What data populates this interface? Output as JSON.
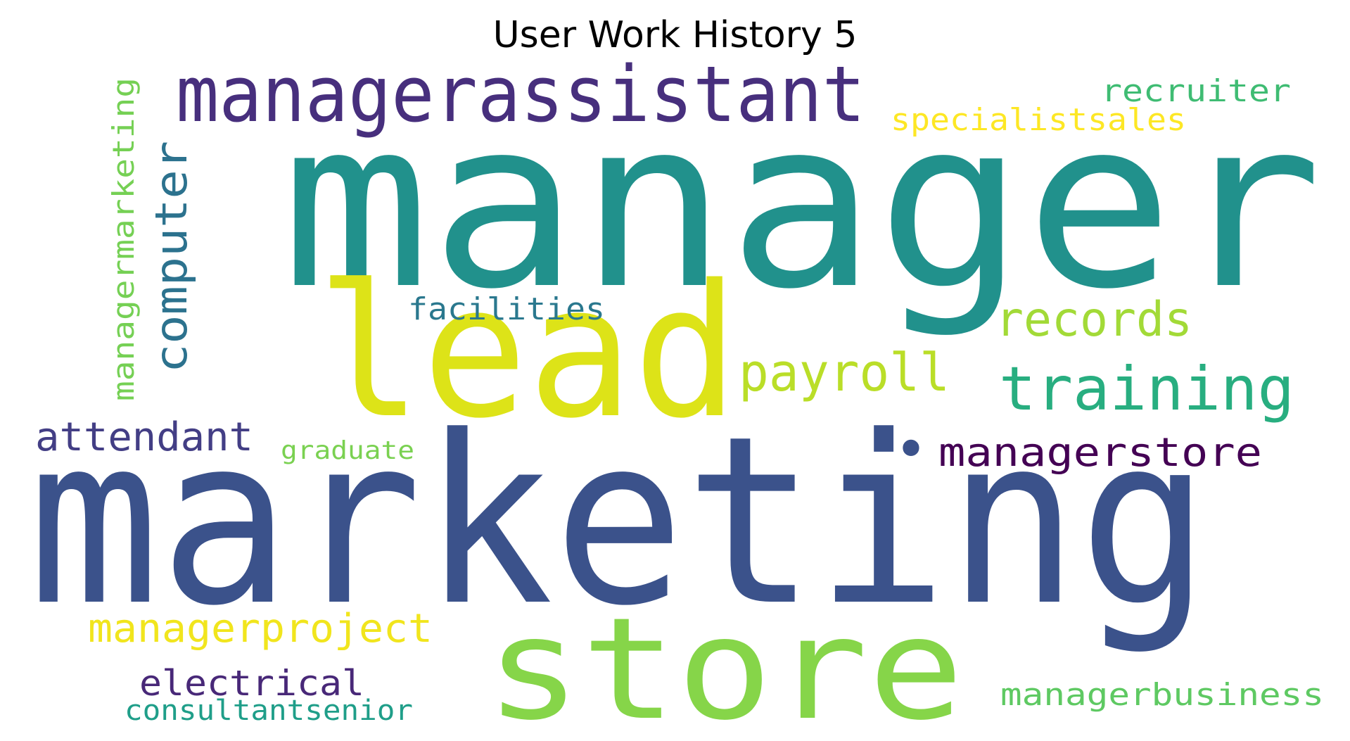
{
  "title": "User Work History 5",
  "words": [
    {
      "text": "manager",
      "color": "#21918c"
    },
    {
      "text": "marketing",
      "color": "#3b528b"
    },
    {
      "text": "lead",
      "color": "#dde318"
    },
    {
      "text": "store",
      "color": "#86d549"
    },
    {
      "text": "managerassistant",
      "color": "#472f7d"
    },
    {
      "text": "training",
      "color": "#28ae80"
    },
    {
      "text": "payroll",
      "color": "#bade28"
    },
    {
      "text": "records",
      "color": "#a2da37"
    },
    {
      "text": "managerproject",
      "color": "#f1e51d"
    },
    {
      "text": "computer",
      "color": "#2c728e"
    },
    {
      "text": "attendant",
      "color": "#433e85"
    },
    {
      "text": "managerstore",
      "color": "#440154"
    },
    {
      "text": "electrical",
      "color": "#482878"
    },
    {
      "text": "recruiter",
      "color": "#3fbc73"
    },
    {
      "text": "facilities",
      "color": "#2a788e"
    },
    {
      "text": "managermarketing",
      "color": "#75d054"
    },
    {
      "text": "specialistsales",
      "color": "#fde725"
    },
    {
      "text": "managerbusiness",
      "color": "#5ec962"
    },
    {
      "text": "consultantsenior",
      "color": "#1f9e89"
    },
    {
      "text": "graduate",
      "color": "#7ad151"
    },
    {
      "text": "•",
      "color": "#3b528b"
    }
  ]
}
